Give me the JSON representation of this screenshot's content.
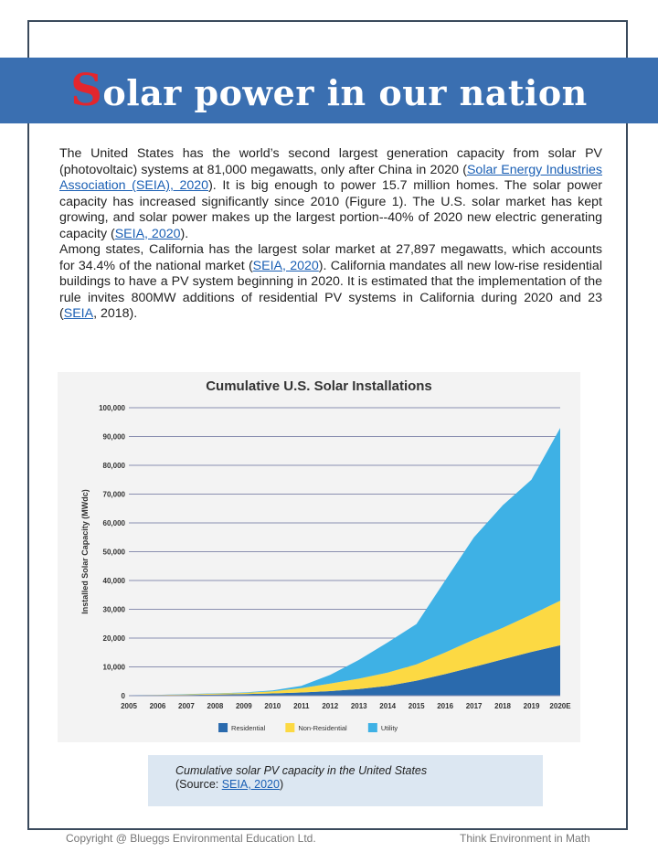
{
  "header": {
    "title_first_letter": "S",
    "title_rest": "olar power in our nation"
  },
  "paragraph1": {
    "t1": "The United States has the world’s second largest generation capacity from solar PV (photovoltaic) systems at 81,000 megawatts, only after China in 2020 (",
    "link1": "Solar Energy Industries Association (SEIA), 2020",
    "t2": "). It is big enough to power 15.7 million homes. The solar power capacity has increased significantly since 2010 (Figure 1). The U.S. solar market has kept growing, and solar power makes up the largest portion--40% of 2020 new electric generating capacity (",
    "link2": "SEIA, 2020",
    "t3": ")."
  },
  "paragraph2": {
    "t1": "Among states, California has the largest solar market at 27,897 megawatts, which accounts for 34.4% of the national market (",
    "link1": "SEIA, 2020",
    "t2": "). California mandates all new low-rise residential buildings to have a PV system beginning in 2020. It is estimated that the implementation of the rule invites 800MW additions of residential PV systems in California during 2020 and 23 (",
    "link2": "SEIA",
    "t3": ", 2018)."
  },
  "caption": {
    "line1": "Cumulative solar PV capacity in the United States",
    "source_prefix": "(Source: ",
    "source_link": "SEIA, 2020",
    "source_suffix": ")"
  },
  "footer": {
    "left": "Copyright @ Blueggs Environmental Education Ltd.",
    "right": "Think Environment in Math"
  },
  "chart_data": {
    "type": "area",
    "stacked": true,
    "title": "Cumulative U.S. Solar Installations",
    "xlabel": "",
    "ylabel": "Installed Solar Capacity (MWdc)",
    "categories": [
      "2005",
      "2006",
      "2007",
      "2008",
      "2009",
      "2010",
      "2011",
      "2012",
      "2013",
      "2014",
      "2015",
      "2016",
      "2017",
      "2018",
      "2019",
      "2020E"
    ],
    "y_ticks": [
      "0",
      "10,000",
      "20,000",
      "30,000",
      "40,000",
      "50,000",
      "60,000",
      "70,000",
      "80,000",
      "90,000",
      "100,000"
    ],
    "ylim": [
      0,
      100000
    ],
    "series": [
      {
        "name": "Residential",
        "color": "#2a6aad",
        "values": [
          80,
          150,
          250,
          400,
          550,
          800,
          1100,
          1600,
          2300,
          3400,
          5200,
          7500,
          10000,
          12600,
          15200,
          17500
        ]
      },
      {
        "name": "Non-Residential",
        "color": "#fcd943",
        "values": [
          50,
          100,
          200,
          300,
          400,
          700,
          1500,
          2600,
          3600,
          4600,
          5700,
          7500,
          9500,
          11000,
          13000,
          15500
        ]
      },
      {
        "name": "Utility",
        "color": "#3eb1e5",
        "values": [
          20,
          50,
          80,
          120,
          150,
          300,
          800,
          3000,
          6500,
          10500,
          14000,
          25000,
          35500,
          42500,
          46800,
          60000
        ]
      }
    ],
    "grid": true,
    "legend_position": "bottom-center"
  }
}
